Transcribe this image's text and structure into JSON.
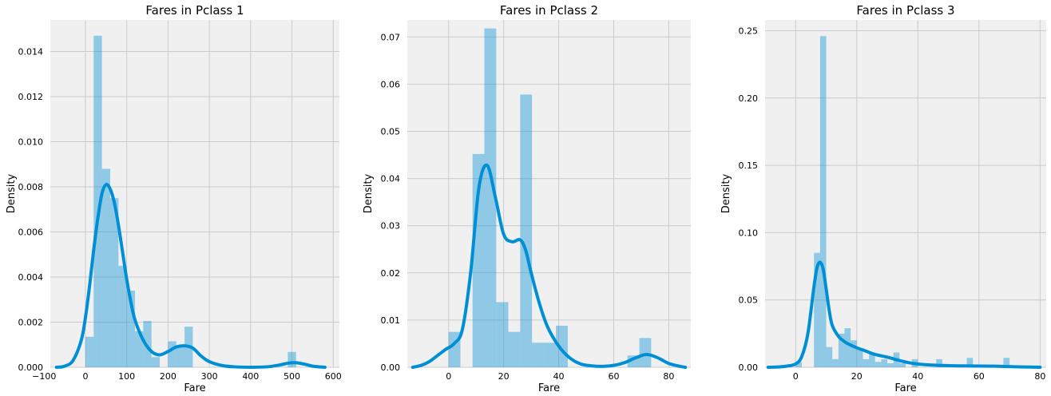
{
  "chart_data": [
    {
      "type": "bar",
      "subtype": "histogram with KDE curve",
      "title": "Fares in Pclass 1",
      "xlabel": "Fare",
      "ylabel": "Density",
      "xlim": [
        -85,
        615
      ],
      "ylim": [
        0,
        0.0154
      ],
      "grid": true,
      "xticks": [
        -100,
        0,
        100,
        200,
        300,
        400,
        500,
        600
      ],
      "xtick_labels": [
        "−100",
        "0",
        "100",
        "200",
        "300",
        "400",
        "500",
        "600"
      ],
      "yticks": [
        0,
        0.002,
        0.004,
        0.006,
        0.008,
        0.01,
        0.012,
        0.014
      ],
      "ytick_labels": [
        "0.000",
        "0.002",
        "0.004",
        "0.006",
        "0.008",
        "0.010",
        "0.012",
        "0.014"
      ],
      "color": "#008fd5",
      "bins": [
        {
          "x0": 0,
          "x1": 20,
          "value": 0.00135
        },
        {
          "x0": 20,
          "x1": 40,
          "value": 0.0147
        },
        {
          "x0": 40,
          "x1": 60,
          "value": 0.0088
        },
        {
          "x0": 60,
          "x1": 80,
          "value": 0.0075
        },
        {
          "x0": 80,
          "x1": 100,
          "value": 0.0045
        },
        {
          "x0": 100,
          "x1": 120,
          "value": 0.0034
        },
        {
          "x0": 120,
          "x1": 140,
          "value": 0.0016
        },
        {
          "x0": 140,
          "x1": 160,
          "value": 0.00205
        },
        {
          "x0": 160,
          "x1": 180,
          "value": 0.00045
        },
        {
          "x0": 180,
          "x1": 200,
          "value": 0
        },
        {
          "x0": 200,
          "x1": 220,
          "value": 0.00115
        },
        {
          "x0": 220,
          "x1": 240,
          "value": 0.00095
        },
        {
          "x0": 240,
          "x1": 260,
          "value": 0.0018
        },
        {
          "x0": 490,
          "x1": 510,
          "value": 0.00068
        }
      ],
      "kde": {
        "x": [
          -70,
          -50,
          -30,
          -10,
          0,
          10,
          20,
          30,
          40,
          50,
          60,
          70,
          80,
          90,
          100,
          110,
          120,
          140,
          160,
          180,
          200,
          220,
          240,
          260,
          280,
          300,
          330,
          360,
          400,
          440,
          470,
          490,
          510,
          530,
          550,
          580
        ],
        "y": [
          0,
          5e-05,
          0.0003,
          0.0012,
          0.0022,
          0.0036,
          0.0052,
          0.0066,
          0.0077,
          0.0081,
          0.0079,
          0.0073,
          0.0063,
          0.0051,
          0.0039,
          0.0029,
          0.0021,
          0.0012,
          0.0007,
          0.00055,
          0.0007,
          0.0009,
          0.00095,
          0.00085,
          0.0005,
          0.00025,
          8e-05,
          2e-05,
          0,
          2e-05,
          0.0001,
          0.00018,
          0.0002,
          0.00014,
          5e-05,
          0
        ]
      }
    },
    {
      "type": "bar",
      "subtype": "histogram with KDE curve",
      "title": "Fares in Pclass 2",
      "xlabel": "Fare",
      "ylabel": "Density",
      "xlim": [
        -15,
        88
      ],
      "ylim": [
        0,
        0.0736
      ],
      "grid": true,
      "xticks": [
        0,
        20,
        40,
        60,
        80
      ],
      "xtick_labels": [
        "0",
        "20",
        "40",
        "60",
        "80"
      ],
      "yticks": [
        0,
        0.01,
        0.02,
        0.03,
        0.04,
        0.05,
        0.06,
        0.07
      ],
      "ytick_labels": [
        "0.00",
        "0.01",
        "0.02",
        "0.03",
        "0.04",
        "0.05",
        "0.06",
        "0.07"
      ],
      "color": "#008fd5",
      "bins": [
        {
          "x0": 0,
          "x1": 4.3,
          "value": 0.0075
        },
        {
          "x0": 4.3,
          "x1": 8.7,
          "value": 0
        },
        {
          "x0": 8.7,
          "x1": 13.0,
          "value": 0.0452
        },
        {
          "x0": 13.0,
          "x1": 17.3,
          "value": 0.0718
        },
        {
          "x0": 17.3,
          "x1": 21.7,
          "value": 0.0138
        },
        {
          "x0": 21.7,
          "x1": 26.0,
          "value": 0.0075
        },
        {
          "x0": 26.0,
          "x1": 30.3,
          "value": 0.0578
        },
        {
          "x0": 30.3,
          "x1": 34.7,
          "value": 0.0052
        },
        {
          "x0": 34.7,
          "x1": 39.0,
          "value": 0.0052
        },
        {
          "x0": 39.0,
          "x1": 43.3,
          "value": 0.0088
        },
        {
          "x0": 65.0,
          "x1": 69.3,
          "value": 0.0025
        },
        {
          "x0": 69.3,
          "x1": 73.6,
          "value": 0.0062
        }
      ],
      "kde": {
        "x": [
          -13,
          -10,
          -7,
          -4,
          -1,
          2,
          5,
          8,
          11,
          14,
          17,
          20,
          23,
          26,
          28,
          30,
          33,
          36,
          40,
          44,
          48,
          52,
          56,
          60,
          64,
          68,
          72,
          76,
          80,
          84,
          86
        ],
        "y": [
          0,
          0.0004,
          0.0012,
          0.0025,
          0.0038,
          0.005,
          0.008,
          0.02,
          0.038,
          0.0428,
          0.036,
          0.0282,
          0.0266,
          0.027,
          0.0248,
          0.02,
          0.0135,
          0.0085,
          0.0045,
          0.002,
          0.0007,
          0.0003,
          0.0002,
          0.0004,
          0.001,
          0.002,
          0.0027,
          0.002,
          0.0008,
          0.0002,
          0
        ]
      }
    },
    {
      "type": "bar",
      "subtype": "histogram with KDE curve",
      "title": "Fares in Pclass 3",
      "xlabel": "Fare",
      "ylabel": "Density",
      "xlim": [
        -10,
        82
      ],
      "ylim": [
        0,
        0.258
      ],
      "grid": true,
      "xticks": [
        0,
        20,
        40,
        60,
        80
      ],
      "xtick_labels": [
        "0",
        "20",
        "40",
        "60",
        "80"
      ],
      "yticks": [
        0,
        0.05,
        0.1,
        0.15,
        0.2,
        0.25
      ],
      "ytick_labels": [
        "0.00",
        "0.05",
        "0.10",
        "0.15",
        "0.20",
        "0.25"
      ],
      "color": "#008fd5",
      "bins": [
        {
          "x0": 0,
          "x1": 2,
          "value": 0.004
        },
        {
          "x0": 6,
          "x1": 8,
          "value": 0.085
        },
        {
          "x0": 8,
          "x1": 10,
          "value": 0.246
        },
        {
          "x0": 10,
          "x1": 12,
          "value": 0.015
        },
        {
          "x0": 12,
          "x1": 14,
          "value": 0.006
        },
        {
          "x0": 14,
          "x1": 16,
          "value": 0.025
        },
        {
          "x0": 16,
          "x1": 18,
          "value": 0.029
        },
        {
          "x0": 18,
          "x1": 20,
          "value": 0.02
        },
        {
          "x0": 20,
          "x1": 22,
          "value": 0.014
        },
        {
          "x0": 22,
          "x1": 24,
          "value": 0.006
        },
        {
          "x0": 24,
          "x1": 26,
          "value": 0.011
        },
        {
          "x0": 26,
          "x1": 28,
          "value": 0.004
        },
        {
          "x0": 28,
          "x1": 30,
          "value": 0.006
        },
        {
          "x0": 30,
          "x1": 32,
          "value": 0.003
        },
        {
          "x0": 32,
          "x1": 34,
          "value": 0.011
        },
        {
          "x0": 34,
          "x1": 36,
          "value": 0.003
        },
        {
          "x0": 38,
          "x1": 40,
          "value": 0.006
        },
        {
          "x0": 46,
          "x1": 48,
          "value": 0.006
        },
        {
          "x0": 56,
          "x1": 58,
          "value": 0.007
        },
        {
          "x0": 68,
          "x1": 70,
          "value": 0.007
        }
      ],
      "kde": {
        "x": [
          -9,
          -6,
          -3,
          0,
          2,
          4,
          6,
          7,
          8,
          9,
          10,
          11,
          12,
          14,
          16,
          18,
          20,
          23,
          26,
          30,
          34,
          38,
          42,
          46,
          50,
          55,
          60,
          65,
          70,
          75,
          80
        ],
        "y": [
          0,
          0.0002,
          0.0008,
          0.0025,
          0.008,
          0.025,
          0.06,
          0.074,
          0.078,
          0.073,
          0.058,
          0.042,
          0.031,
          0.023,
          0.019,
          0.0165,
          0.0145,
          0.012,
          0.0095,
          0.0075,
          0.005,
          0.003,
          0.002,
          0.0015,
          0.0012,
          0.001,
          0.0009,
          0.0008,
          0.0005,
          0.0002,
          0
        ]
      }
    }
  ]
}
